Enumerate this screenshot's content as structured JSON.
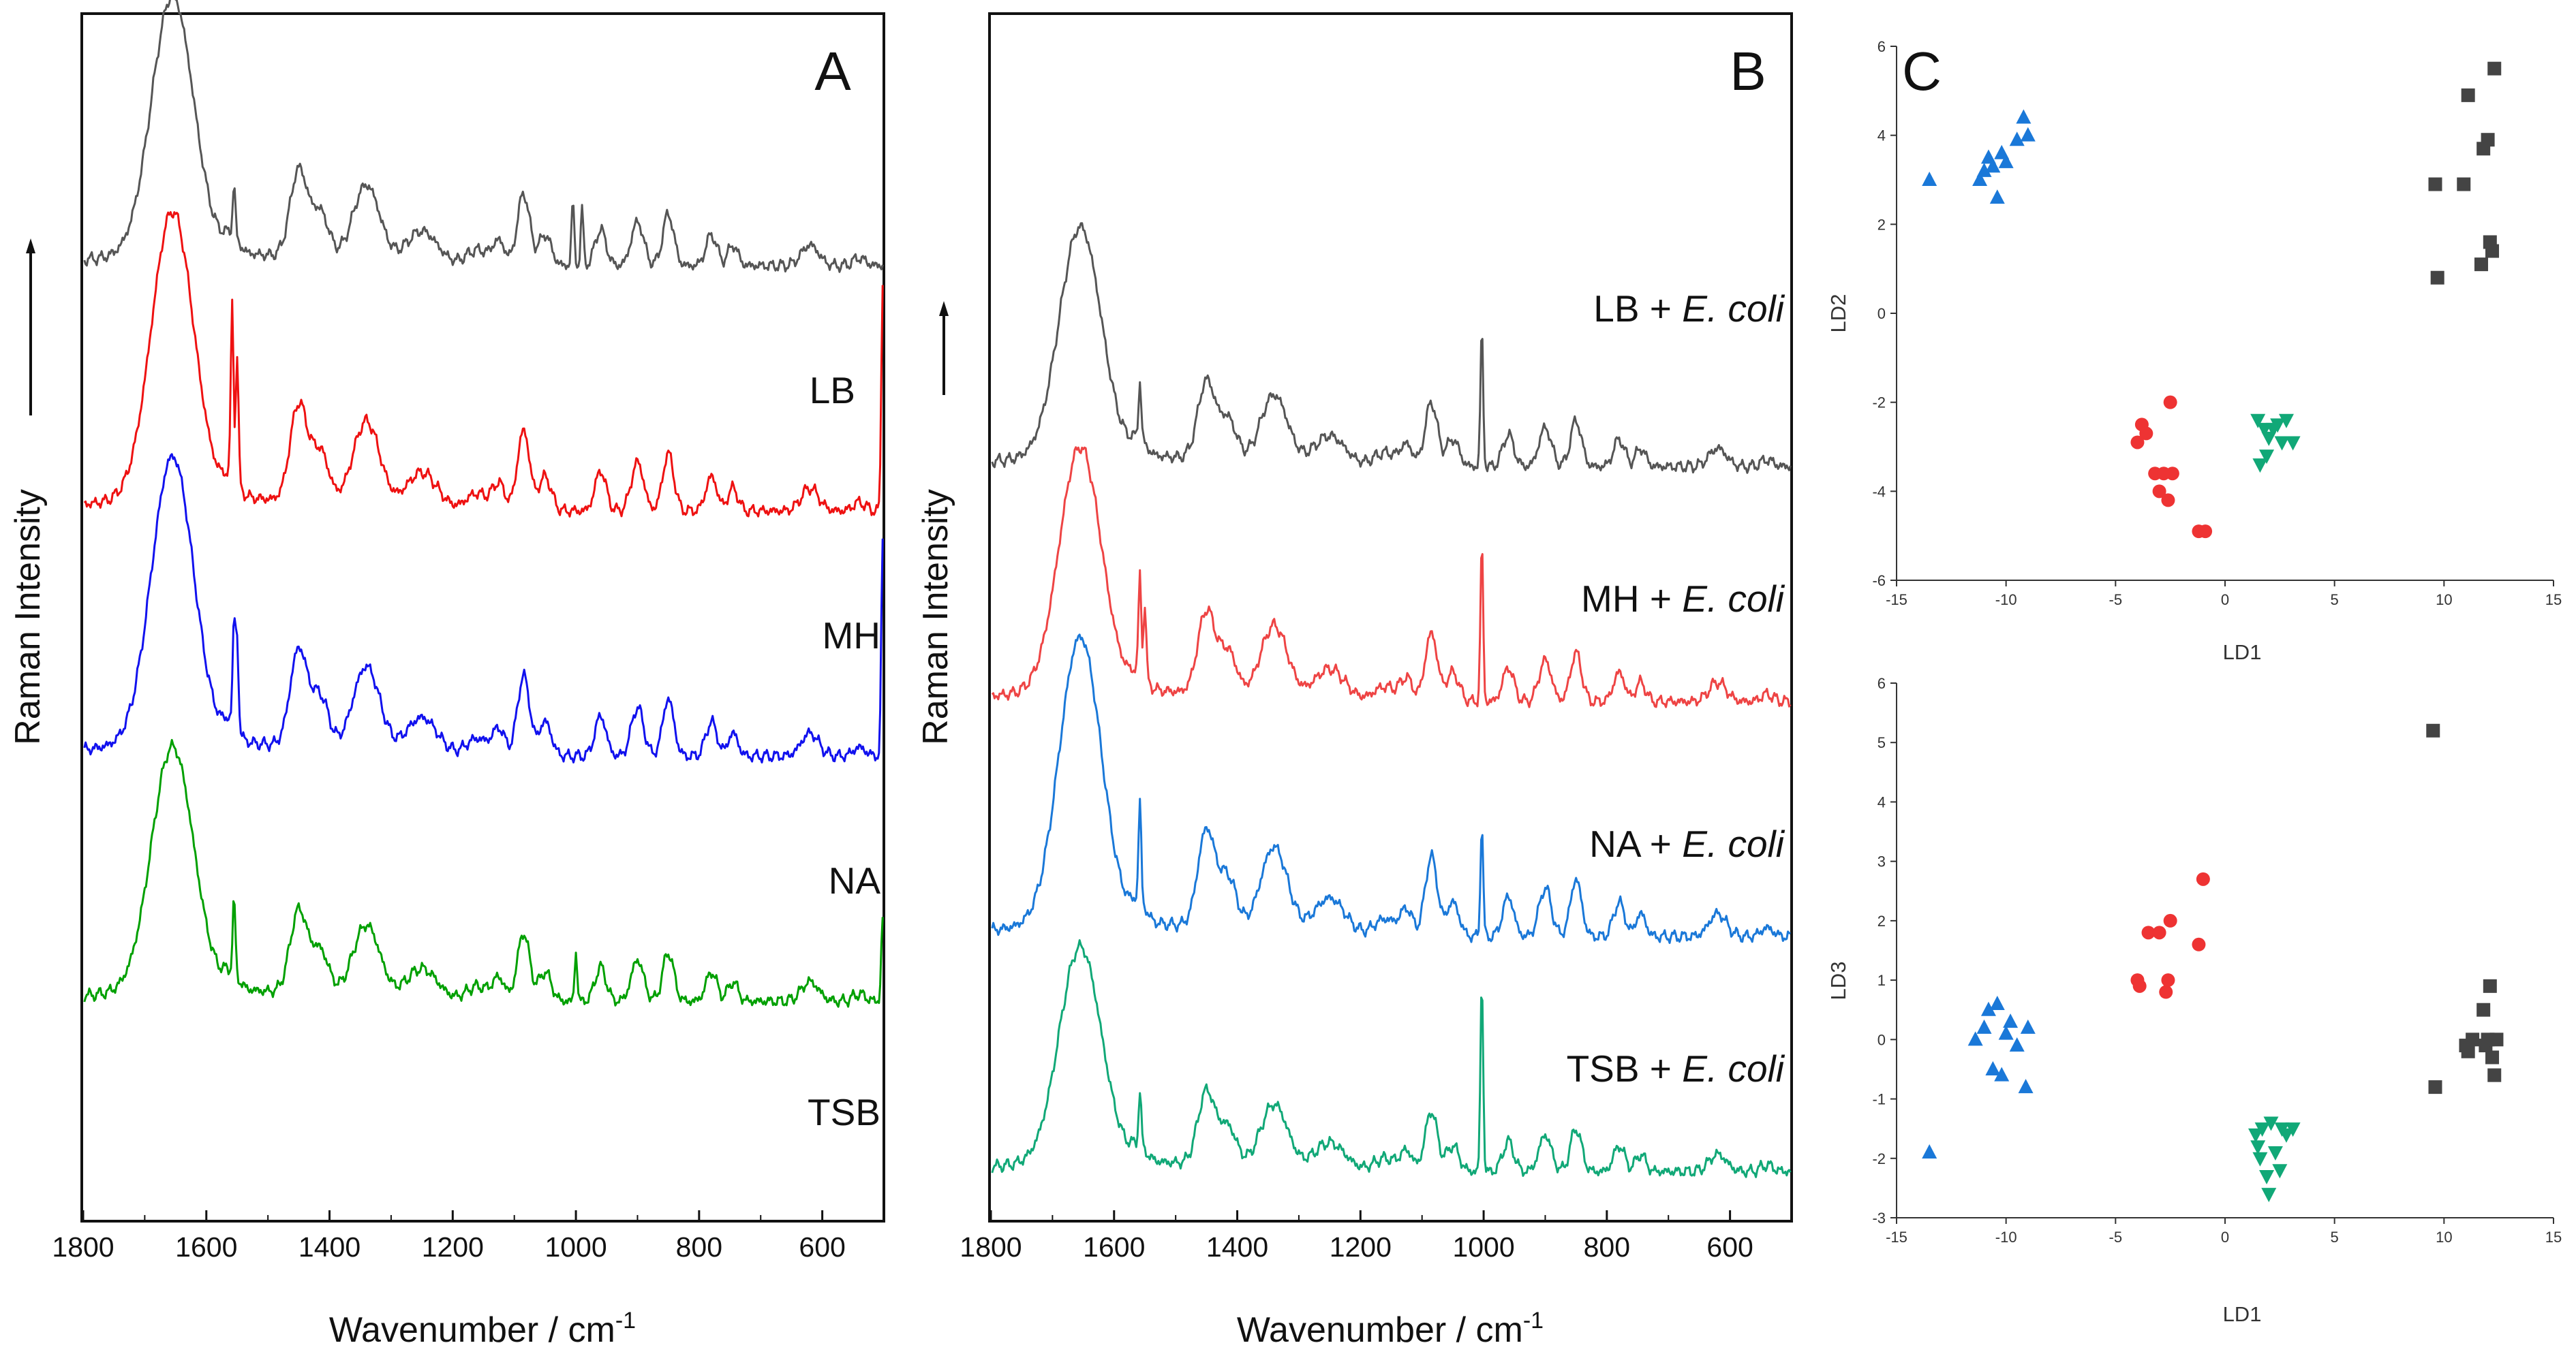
{
  "chart_data": [
    {
      "panel": "A",
      "type": "line",
      "title": "A",
      "xlabel": "Wavenumber / cm-1",
      "xlabel_text": "Wavenumber / cm",
      "xlabel_superscript": "-1",
      "ylabel": "Raman Intensity",
      "xlim": [
        1800,
        500
      ],
      "xticks": [
        "1800",
        "1600",
        "1400",
        "1200",
        "1000",
        "800",
        "600"
      ],
      "grid": false,
      "series": [
        {
          "name": "LB",
          "color": "#555555",
          "offset": 3,
          "scale": 0.9,
          "spikes": [
            [
              1555,
              0.2
            ],
            [
              1005,
              0.25
            ],
            [
              990,
              0.22
            ]
          ]
        },
        {
          "name": "MH",
          "color": "#ee1111",
          "offset": 2,
          "scale": 1.0,
          "spikes": [
            [
              1558,
              0.6
            ],
            [
              1550,
              0.45
            ],
            [
              502,
              0.8
            ]
          ]
        },
        {
          "name": "NA",
          "color": "#1111ee",
          "offset": 1,
          "scale": 1.0,
          "spikes": [
            [
              1555,
              0.35
            ],
            [
              1550,
              0.3
            ],
            [
              502,
              0.75
            ]
          ]
        },
        {
          "name": "TSB",
          "color": "#00a000",
          "offset": 0,
          "scale": 0.85,
          "spikes": [
            [
              1555,
              0.3
            ],
            [
              1000,
              0.2
            ],
            [
              502,
              0.35
            ]
          ]
        }
      ]
    },
    {
      "panel": "B",
      "type": "line",
      "title": "B",
      "xlabel": "Wavenumber / cm-1",
      "xlabel_text": "Wavenumber / cm",
      "xlabel_superscript": "-1",
      "ylabel": "Raman Intensity",
      "xlim": [
        1800,
        500
      ],
      "xticks": [
        "1800",
        "1600",
        "1400",
        "1200",
        "1000",
        "800",
        "600"
      ],
      "grid": false,
      "series": [
        {
          "name": "LB + E. coli",
          "label_main": "LB + ",
          "label_italic": "E. coli",
          "color": "#555555",
          "offset": 3,
          "scale": 0.8,
          "spikes": [
            [
              1003,
              0.6
            ],
            [
              1558,
              0.25
            ]
          ]
        },
        {
          "name": "MH + E. coli",
          "label_main": "MH + ",
          "label_italic": "E. coli",
          "color": "#ee4444",
          "offset": 2,
          "scale": 0.85,
          "spikes": [
            [
              1003,
              0.65
            ],
            [
              1558,
              0.4
            ],
            [
              1550,
              0.3
            ]
          ]
        },
        {
          "name": "NA + E. coli",
          "label_main": "NA + ",
          "label_italic": "E. coli",
          "color": "#1a78d8",
          "offset": 1,
          "scale": 1.0,
          "spikes": [
            [
              1003,
              0.4
            ],
            [
              1558,
              0.35
            ]
          ]
        },
        {
          "name": "TSB + E. coli",
          "label_main": "TSB + ",
          "label_italic": "E. coli",
          "color": "#11a877",
          "offset": 0,
          "scale": 0.75,
          "spikes": [
            [
              1003,
              0.9
            ],
            [
              1558,
              0.25
            ]
          ]
        }
      ]
    },
    {
      "panel": "C",
      "type": "scatter",
      "title": "C",
      "xlabel": "LD1",
      "ylabel": "LD2",
      "xlim": [
        -15,
        15
      ],
      "ylim": [
        -6,
        6
      ],
      "xticks": [
        "-15",
        "-10",
        "-5",
        "0",
        "5",
        "10",
        "15"
      ],
      "yticks": [
        "-6",
        "-4",
        "-2",
        "0",
        "2",
        "4",
        "6"
      ],
      "series": [
        {
          "name": "blue",
          "marker": "triangle-up",
          "color": "#1a78d8",
          "points": [
            [
              -13.5,
              3.0
            ],
            [
              -11.2,
              3.0
            ],
            [
              -11.0,
              3.2
            ],
            [
              -10.8,
              3.5
            ],
            [
              -10.6,
              3.3
            ],
            [
              -10.4,
              2.6
            ],
            [
              -10.2,
              3.6
            ],
            [
              -10.0,
              3.4
            ],
            [
              -9.5,
              3.9
            ],
            [
              -9.2,
              4.4
            ],
            [
              -9.0,
              4.0
            ]
          ]
        },
        {
          "name": "red",
          "marker": "circle",
          "color": "#ee3333",
          "points": [
            [
              -4.0,
              -2.9
            ],
            [
              -3.8,
              -2.5
            ],
            [
              -3.6,
              -2.7
            ],
            [
              -3.2,
              -3.6
            ],
            [
              -3.0,
              -4.0
            ],
            [
              -2.8,
              -3.6
            ],
            [
              -2.6,
              -4.2
            ],
            [
              -2.5,
              -2.0
            ],
            [
              -2.4,
              -3.6
            ],
            [
              -1.2,
              -4.9
            ],
            [
              -0.9,
              -4.9
            ]
          ]
        },
        {
          "name": "green",
          "marker": "triangle-down",
          "color": "#11a877",
          "points": [
            [
              1.5,
              -2.4
            ],
            [
              1.8,
              -2.6
            ],
            [
              1.9,
              -3.2
            ],
            [
              2.0,
              -2.8
            ],
            [
              2.2,
              -2.6
            ],
            [
              2.4,
              -2.5
            ],
            [
              2.6,
              -2.9
            ],
            [
              2.8,
              -2.4
            ],
            [
              3.1,
              -2.9
            ],
            [
              1.6,
              -3.4
            ]
          ]
        },
        {
          "name": "gray",
          "marker": "square",
          "color": "#444444",
          "points": [
            [
              9.6,
              2.9
            ],
            [
              9.7,
              0.8
            ],
            [
              10.9,
              2.9
            ],
            [
              11.1,
              4.9
            ],
            [
              11.7,
              1.1
            ],
            [
              11.8,
              3.7
            ],
            [
              12.0,
              3.9
            ],
            [
              12.1,
              1.6
            ],
            [
              12.2,
              1.4
            ],
            [
              12.3,
              5.5
            ]
          ]
        }
      ]
    },
    {
      "panel": "C-lower",
      "type": "scatter",
      "title": "",
      "xlabel": "LD1",
      "ylabel": "LD3",
      "xlim": [
        -15,
        15
      ],
      "ylim": [
        -3,
        6
      ],
      "xticks": [
        "-15",
        "-10",
        "-5",
        "0",
        "5",
        "10",
        "15"
      ],
      "yticks": [
        "-3",
        "-2",
        "-1",
        "0",
        "1",
        "2",
        "3",
        "4",
        "5",
        "6"
      ],
      "series": [
        {
          "name": "blue",
          "marker": "triangle-up",
          "color": "#1a78d8",
          "points": [
            [
              -13.5,
              -1.9
            ],
            [
              -11.4,
              0.0
            ],
            [
              -11.0,
              0.2
            ],
            [
              -10.8,
              0.5
            ],
            [
              -10.6,
              -0.5
            ],
            [
              -10.4,
              0.6
            ],
            [
              -10.2,
              -0.6
            ],
            [
              -10.0,
              0.1
            ],
            [
              -9.8,
              0.3
            ],
            [
              -9.5,
              -0.1
            ],
            [
              -9.1,
              -0.8
            ],
            [
              -9.0,
              0.2
            ]
          ]
        },
        {
          "name": "red",
          "marker": "circle",
          "color": "#ee3333",
          "points": [
            [
              -4.0,
              1.0
            ],
            [
              -3.9,
              0.9
            ],
            [
              -3.5,
              1.8
            ],
            [
              -3.0,
              1.8
            ],
            [
              -2.7,
              0.8
            ],
            [
              -2.6,
              1.0
            ],
            [
              -2.5,
              2.0
            ],
            [
              -1.2,
              1.6
            ],
            [
              -1.0,
              2.7
            ]
          ]
        },
        {
          "name": "green",
          "marker": "triangle-down",
          "color": "#11a877",
          "points": [
            [
              1.4,
              -1.6
            ],
            [
              1.5,
              -1.8
            ],
            [
              1.6,
              -2.0
            ],
            [
              1.7,
              -1.5
            ],
            [
              1.9,
              -2.3
            ],
            [
              2.0,
              -2.6
            ],
            [
              2.1,
              -1.4
            ],
            [
              2.3,
              -1.9
            ],
            [
              2.5,
              -2.2
            ],
            [
              2.6,
              -1.5
            ],
            [
              2.8,
              -1.6
            ],
            [
              3.1,
              -1.5
            ]
          ]
        },
        {
          "name": "gray",
          "marker": "square",
          "color": "#444444",
          "points": [
            [
              9.5,
              5.2
            ],
            [
              9.6,
              -0.8
            ],
            [
              11.0,
              -0.1
            ],
            [
              11.1,
              -0.2
            ],
            [
              11.3,
              0.0
            ],
            [
              11.8,
              0.5
            ],
            [
              11.9,
              -0.1
            ],
            [
              12.0,
              0.0
            ],
            [
              12.1,
              0.9
            ],
            [
              12.2,
              -0.3
            ],
            [
              12.3,
              -0.6
            ],
            [
              12.4,
              0.0
            ]
          ]
        }
      ]
    }
  ]
}
